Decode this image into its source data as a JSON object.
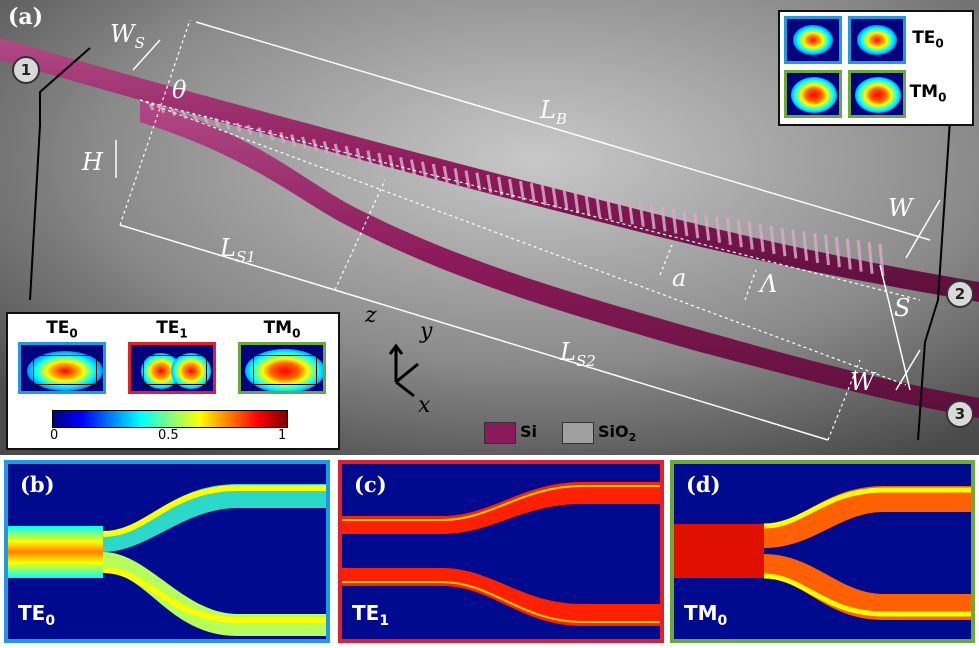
{
  "panels": {
    "a": "(a)",
    "b": "(b)",
    "c": "(c)",
    "d": "(d)"
  },
  "ports": [
    "1",
    "2",
    "3"
  ],
  "dimension_labels": {
    "ws": "W",
    "ws_sub": "S",
    "theta": "θ",
    "lb": "L",
    "lb_sub": "B",
    "h": "H",
    "ls1": "L",
    "ls1_sub": "S1",
    "ls2": "L",
    "ls2_sub": "S2",
    "a": "a",
    "lambda": "Λ",
    "w_top": "W",
    "s": "S",
    "w_bot": "W"
  },
  "axes": {
    "z": "z",
    "y": "y",
    "x": "x"
  },
  "legend": {
    "si": "Si",
    "sio2": "SiO",
    "sio2_sub": "2"
  },
  "colors": {
    "si": "#8c1a5a",
    "sio2": "#a0a0a0",
    "te0_frame": "#1e9be0",
    "te1_frame": "#e0202a",
    "tm0_frame": "#6aaa3a"
  },
  "mode_inset": {
    "modes": [
      {
        "name": "TE",
        "sub": "0"
      },
      {
        "name": "TE",
        "sub": "1"
      },
      {
        "name": "TM",
        "sub": "0"
      }
    ],
    "colorbar_ticks": [
      "0",
      "0.5",
      "1"
    ]
  },
  "port_inset": {
    "rows": [
      {
        "name": "TE",
        "sub": "0"
      },
      {
        "name": "TM",
        "sub": "0"
      }
    ]
  },
  "sim_panels": [
    {
      "letter": "(b)",
      "mode": "TE",
      "sub": "0"
    },
    {
      "letter": "(c)",
      "mode": "TE",
      "sub": "1"
    },
    {
      "letter": "(d)",
      "mode": "TM",
      "sub": "0"
    }
  ]
}
